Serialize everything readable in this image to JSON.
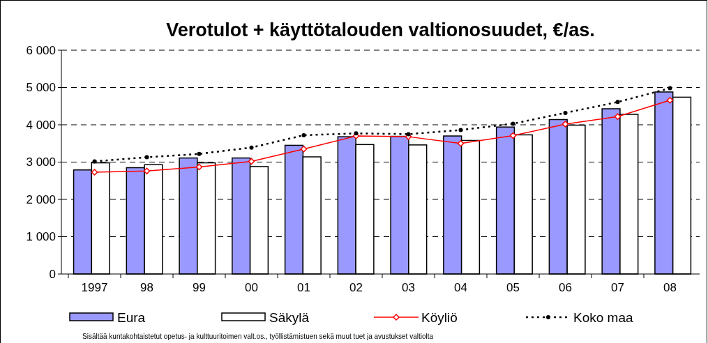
{
  "chart_data": {
    "type": "bar",
    "title": "Verotulot + käyttötalouden valtionosuudet, €/as.",
    "categories": [
      "1997",
      "98",
      "99",
      "00",
      "01",
      "02",
      "03",
      "04",
      "05",
      "06",
      "07",
      "08"
    ],
    "series": [
      {
        "name": "Eura",
        "color": "#9999ff",
        "values": [
          2790,
          2850,
          3110,
          3110,
          3450,
          3680,
          3690,
          3700,
          3940,
          4140,
          4430,
          4880
        ]
      },
      {
        "name": "Säkylä",
        "color": "#ffffff",
        "values": [
          2980,
          2930,
          2980,
          2880,
          3140,
          3470,
          3460,
          3580,
          3730,
          3990,
          4280,
          4740
        ]
      },
      {
        "name": "Köyliö",
        "type": "line",
        "color": "#ff0000",
        "marker": "diamond",
        "line_style": "solid",
        "values": [
          2730,
          2760,
          2870,
          3020,
          3350,
          3700,
          3680,
          3500,
          3710,
          4020,
          4220,
          4660
        ]
      },
      {
        "name": "Koko maa",
        "type": "line",
        "color": "#000000",
        "marker": "circle",
        "line_style": "dotted",
        "values": [
          3020,
          3130,
          3220,
          3390,
          3720,
          3770,
          3750,
          3860,
          4030,
          4320,
          4610,
          4980
        ]
      }
    ],
    "ylim": [
      0,
      6000
    ],
    "yticks": [
      {
        "value": 0,
        "label": "0"
      },
      {
        "value": 1000,
        "label": "1 000"
      },
      {
        "value": 2000,
        "label": "2 000"
      },
      {
        "value": 3000,
        "label": "3 000"
      },
      {
        "value": 4000,
        "label": "4 000"
      },
      {
        "value": 5000,
        "label": "5 000"
      },
      {
        "value": 6000,
        "label": "6 000"
      }
    ],
    "grid": "y",
    "legend": "bottom",
    "annotations": [
      "Sisältää kuntakohtaistetut opetus- ja kulttuuritoimen valt.os., työllistämistuen sekä muut tuet ja avustukset valtiolta"
    ]
  }
}
